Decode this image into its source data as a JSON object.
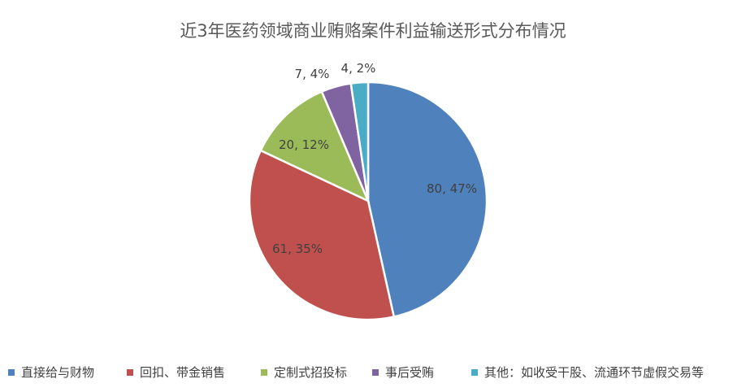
{
  "chart_data": {
    "type": "pie",
    "title": "近3年医药领域商业贿赂案件利益输送形式分布情况",
    "slices": [
      {
        "name": "直接给与财物",
        "value": 80,
        "percent": "47%",
        "label": "80, 47%",
        "color": "#4f81bd"
      },
      {
        "name": "回扣、带金销售",
        "value": 61,
        "percent": "35%",
        "label": "61, 35%",
        "color": "#c0504d"
      },
      {
        "name": "定制式招投标",
        "value": 20,
        "percent": "12%",
        "label": "20, 12%",
        "color": "#9bbb59"
      },
      {
        "name": "事后受贿",
        "value": 7,
        "percent": "4%",
        "label": "7, 4%",
        "color": "#8064a2"
      },
      {
        "name": "其他：如收受干股、流通环节虚假交易等",
        "value": 4,
        "percent": "2%",
        "label": "4, 2%",
        "color": "#4bacc6"
      }
    ],
    "legend_position": "bottom"
  }
}
